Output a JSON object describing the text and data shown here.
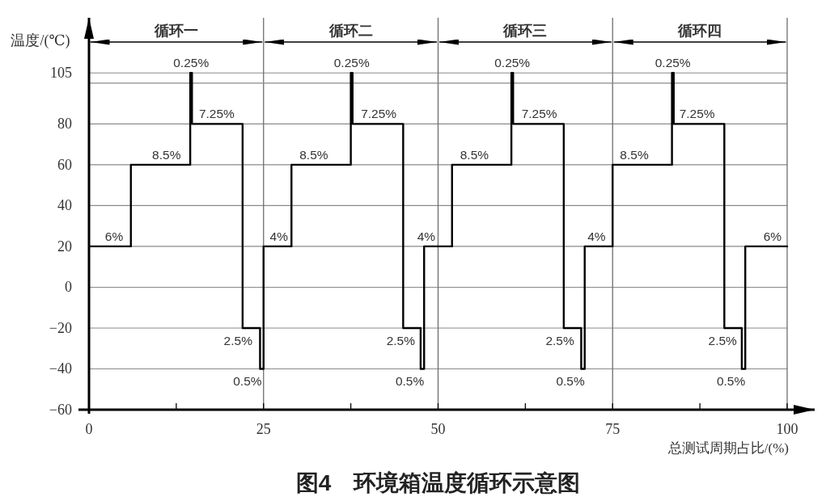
{
  "chart_data": {
    "type": "step",
    "title": "图4　环境箱温度循环示意图",
    "xlabel": "总测试周期占比/(%)",
    "ylabel": "温度/(℃)",
    "x": [
      0,
      6,
      14.5,
      14.75,
      22,
      24.5,
      25,
      29,
      37.5,
      37.75,
      45,
      47.5,
      48,
      52,
      60.5,
      60.75,
      68,
      70.5,
      71,
      75,
      83.5,
      83.75,
      91,
      93.5,
      94,
      100
    ],
    "values": [
      20,
      60,
      105,
      80,
      -20,
      -40,
      20,
      60,
      105,
      80,
      -20,
      -40,
      20,
      60,
      105,
      80,
      -20,
      -40,
      20,
      60,
      105,
      80,
      -20,
      -40,
      20,
      20
    ],
    "color": "#000000",
    "xlim": [
      0,
      100
    ],
    "ylim": [
      -60,
      132
    ],
    "xticks": [
      0,
      {
        "value": 12.5,
        "label": null
      },
      25,
      {
        "value": 37.5,
        "label": null
      },
      50,
      {
        "value": 62.5,
        "label": null
      },
      75,
      {
        "value": 87.5,
        "label": null
      },
      100
    ],
    "yticks": [
      -60,
      -40,
      -20,
      0,
      20,
      40,
      60,
      80,
      105
    ],
    "grid": true,
    "ref_lines": [
      {
        "axis": "y",
        "value": 100
      }
    ],
    "annotations": [
      "循环一",
      "循环二",
      "循环三",
      "循环四",
      {
        "text": "6%",
        "x": 3.6,
        "y": 20
      },
      {
        "text": "8.5%",
        "x": 11.1,
        "y": 60
      },
      {
        "text": "0.25%",
        "x": 14.625,
        "y": 105
      },
      {
        "text": "7.25%",
        "x": 18.3,
        "y": 80
      },
      {
        "text": "2.5%",
        "x": 23.4,
        "y": -20
      },
      {
        "text": "0.5%",
        "x": 24.75,
        "y": -40
      },
      {
        "text": "4%",
        "x": 27.2,
        "y": 20
      },
      {
        "text": "8.5%",
        "x": 32.2,
        "y": 60
      },
      {
        "text": "0.25%",
        "x": 37.625,
        "y": 105
      },
      {
        "text": "7.25%",
        "x": 41.5,
        "y": 80
      },
      {
        "text": "2.5%",
        "x": 46.7,
        "y": -20
      },
      {
        "text": "0.5%",
        "x": 48,
        "y": -40
      },
      {
        "text": "4%",
        "x": 48.3,
        "y": 20
      },
      {
        "text": "8.5%",
        "x": 55.2,
        "y": 60
      },
      {
        "text": "0.25%",
        "x": 60.625,
        "y": 105
      },
      {
        "text": "7.25%",
        "x": 64.5,
        "y": 80
      },
      {
        "text": "2.5%",
        "x": 69.5,
        "y": -20
      },
      {
        "text": "0.5%",
        "x": 71,
        "y": -40
      },
      {
        "text": "4%",
        "x": 72.7,
        "y": 20
      },
      {
        "text": "8.5%",
        "x": 78.1,
        "y": 60
      },
      {
        "text": "0.25%",
        "x": 83.625,
        "y": 105
      },
      {
        "text": "7.25%",
        "x": 87.1,
        "y": 80
      },
      {
        "text": "2.5%",
        "x": 92.8,
        "y": -20
      },
      {
        "text": "0.5%",
        "x": 94,
        "y": -40
      },
      {
        "text": "6%",
        "x": 97.9,
        "y": 20
      }
    ]
  }
}
